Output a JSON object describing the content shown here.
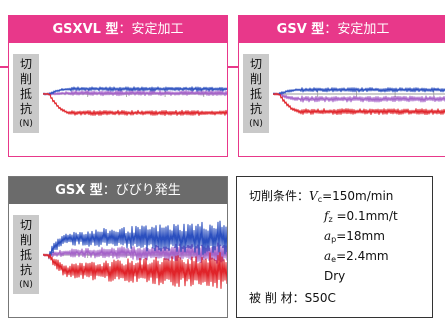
{
  "panels": [
    {
      "model": "GSXVL 型",
      "separator": "：",
      "result": "安定加工",
      "y_label_chars": [
        "切",
        "削",
        "抵",
        "抗"
      ],
      "y_unit": "(N)"
    },
    {
      "model": "GSV 型",
      "separator": "：",
      "result": "安定加工",
      "y_label_chars": [
        "切",
        "削",
        "抵",
        "抗"
      ],
      "y_unit": "(N)"
    },
    {
      "model": "GSX 型",
      "separator": "：",
      "result": "びびり発生",
      "y_label_chars": [
        "切",
        "削",
        "抵",
        "抗"
      ],
      "y_unit": "(N)"
    }
  ],
  "conditions": {
    "label": "切削条件：",
    "vc_sym": "V",
    "vc_sub": "c",
    "vc_val": "=150m/min",
    "fz_sym": "f",
    "fz_sub": "z",
    "fz_val": " =0.1mm/t",
    "ap_sym": "a",
    "ap_sub": "p",
    "ap_val": "=18mm",
    "ae_sym": "a",
    "ae_sub": "e",
    "ae_val": "=2.4mm",
    "coolant": "Dry",
    "material_label": "被 削 材：",
    "material": "S50C"
  },
  "colors": {
    "accent_pink": "#e8388a",
    "header_gray": "#6b6b6b",
    "series_blue": "#2b4fbf",
    "series_purple": "#a563c9",
    "series_red": "#e0242a"
  },
  "chart_data": [
    {
      "type": "line",
      "title": "GSXVL 型：安定加工",
      "ylabel": "切削抵抗 (N)",
      "xlabel": "",
      "stability": "stable",
      "series": [
        {
          "color": "#2b4fbf",
          "level": 0.12,
          "amplitude": 0.05
        },
        {
          "color": "#a563c9",
          "level": 0.02,
          "amplitude": 0.06
        },
        {
          "color": "#e0242a",
          "level": -0.45,
          "amplitude": 0.06
        }
      ]
    },
    {
      "type": "line",
      "title": "GSV 型：安定加工",
      "ylabel": "切削抵抗 (N)",
      "xlabel": "",
      "stability": "stable",
      "series": [
        {
          "color": "#2b4fbf",
          "level": 0.1,
          "amplitude": 0.05
        },
        {
          "color": "#a563c9",
          "level": -0.12,
          "amplitude": 0.07
        },
        {
          "color": "#e0242a",
          "level": -0.42,
          "amplitude": 0.07
        }
      ]
    },
    {
      "type": "line",
      "title": "GSX 型：びびり発生",
      "ylabel": "切削抵抗 (N)",
      "xlabel": "",
      "stability": "chatter",
      "series": [
        {
          "color": "#2b4fbf",
          "level": 0.4,
          "amplitude": 0.38
        },
        {
          "color": "#a563c9",
          "level": 0.05,
          "amplitude": 0.22
        },
        {
          "color": "#e0242a",
          "level": -0.38,
          "amplitude": 0.4
        }
      ]
    }
  ]
}
